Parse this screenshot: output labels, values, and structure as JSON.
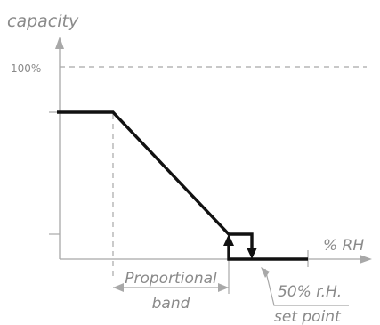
{
  "labels": {
    "y_axis": "capacity",
    "x_axis": "% RH",
    "hundred_percent": "100%",
    "proportional": "Proportional",
    "band": "band",
    "setpoint_line1": "50% r.H.",
    "setpoint_line2": "set point"
  },
  "colors": {
    "curve": "#111111",
    "axis": "#a8a8a8",
    "text": "#8a8a8a"
  }
}
